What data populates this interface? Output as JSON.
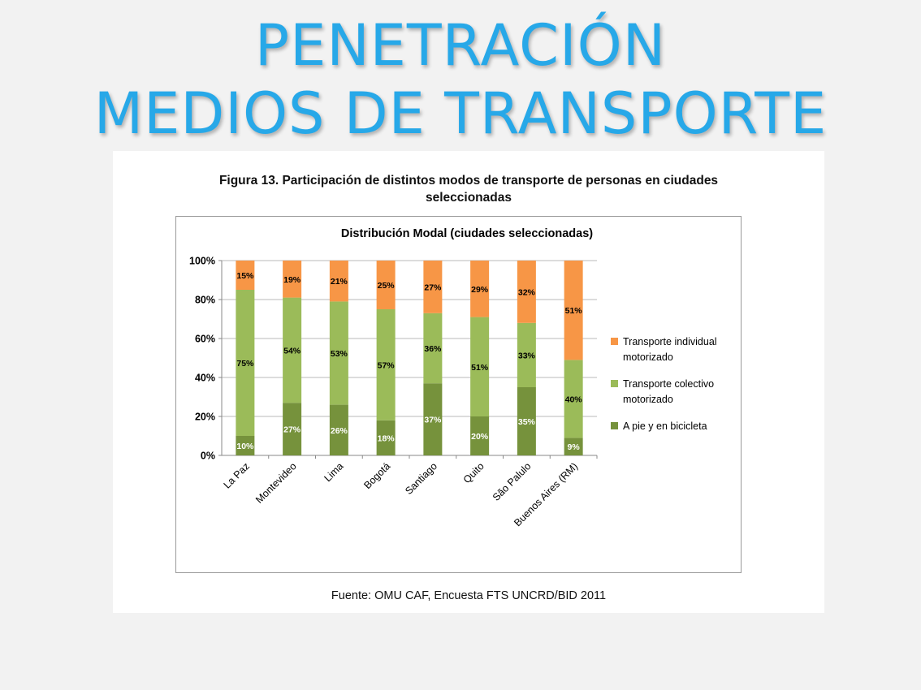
{
  "slide": {
    "title_line1": "PENETRACIÓN",
    "title_line2": "MEDIOS DE TRANSPORTE"
  },
  "figure": {
    "caption_line1": "Figura 13.  Participación de distintos modos de transporte de personas en ciudades",
    "caption_line2": "seleccionadas",
    "source": "Fuente: OMU CAF, Encuesta FTS UNCRD/BID 2011"
  },
  "chart_data": {
    "type": "bar",
    "stacked": true,
    "title": "Distribución Modal (ciudades seleccionadas)",
    "categories": [
      "La Paz",
      "Montevideo",
      "Lima",
      "Bogotá",
      "Santiago",
      "Quito",
      "São Palulo",
      "Buenos Aires (RM)"
    ],
    "series": [
      {
        "name": "A pie y en bicicleta",
        "values": [
          10,
          27,
          26,
          18,
          37,
          20,
          35,
          9
        ],
        "color": "#76923c",
        "label_color": "#ffffff"
      },
      {
        "name": "Transporte colectivo motorizado",
        "values": [
          75,
          54,
          53,
          57,
          36,
          51,
          33,
          40
        ],
        "color": "#9bbb59",
        "label_color": "#000000"
      },
      {
        "name": "Transporte individual motorizado",
        "values": [
          15,
          19,
          21,
          25,
          27,
          29,
          32,
          51
        ],
        "color": "#f79646",
        "label_color": "#000000"
      }
    ],
    "legend_order": [
      "Transporte individual motorizado",
      "Transporte colectivo motorizado",
      "A pie y en bicicleta"
    ],
    "legend_lines": [
      [
        "Transporte individual",
        "motorizado"
      ],
      [
        "Transporte colectivo",
        "motorizado"
      ],
      [
        "A pie y en bicicleta"
      ]
    ],
    "ylim": [
      0,
      100
    ],
    "yticks": [
      "0%",
      "20%",
      "40%",
      "60%",
      "80%",
      "100%"
    ],
    "grid": true,
    "legend_position": "right"
  }
}
